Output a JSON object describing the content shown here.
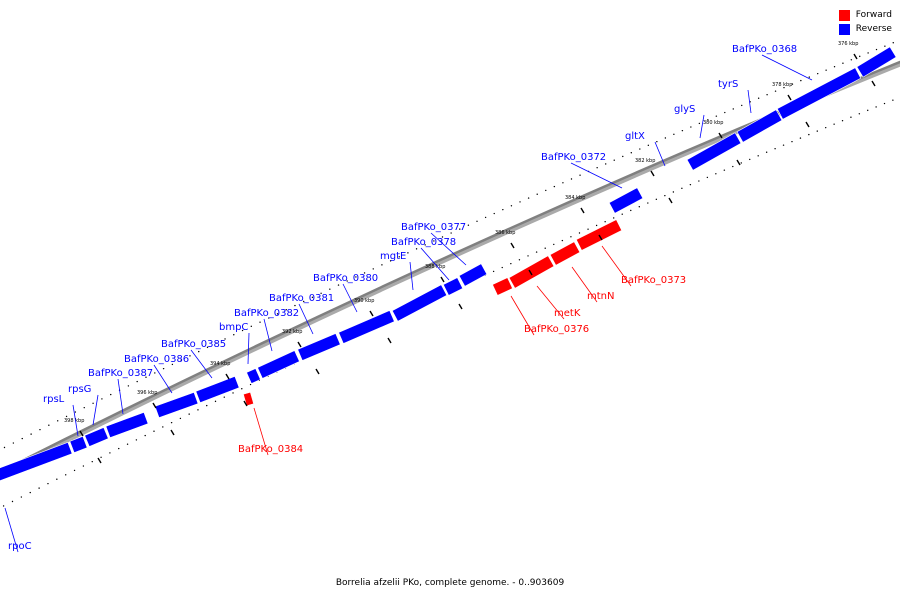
{
  "title": "Borrelia afzelii PKo, complete genome. - 0..903609",
  "legend": [
    {
      "label": "Forward",
      "color": "#ff0000"
    },
    {
      "label": "Reverse",
      "color": "#0000ff"
    }
  ],
  "colors": {
    "forward": "#ff0000",
    "reverse": "#0000ff",
    "backbone": "#808080"
  },
  "ticks": [
    "376 kbp",
    "378 kbp",
    "380 kbp",
    "382 kbp",
    "384 kbp",
    "386 kbp",
    "388 kbp",
    "390 kbp",
    "392 kbp",
    "394 kbp",
    "396 kbp",
    "398 kbp"
  ],
  "genes": [
    {
      "label": "BafPKo_0368",
      "strand": "reverse"
    },
    {
      "label": "tyrS",
      "strand": "reverse"
    },
    {
      "label": "glyS",
      "strand": "reverse"
    },
    {
      "label": "gltX",
      "strand": "reverse"
    },
    {
      "label": "BafPKo_0372",
      "strand": "reverse"
    },
    {
      "label": "BafPKo_0373",
      "strand": "forward"
    },
    {
      "label": "mtnN",
      "strand": "forward"
    },
    {
      "label": "metK",
      "strand": "forward"
    },
    {
      "label": "BafPKo_0376",
      "strand": "forward"
    },
    {
      "label": "BafPKo_0377",
      "strand": "reverse"
    },
    {
      "label": "BafPKo_0378",
      "strand": "reverse"
    },
    {
      "label": "mgtE",
      "strand": "reverse"
    },
    {
      "label": "BafPKo_0380",
      "strand": "reverse"
    },
    {
      "label": "BafPKo_0381",
      "strand": "reverse"
    },
    {
      "label": "BafPKo_0382",
      "strand": "reverse"
    },
    {
      "label": "BafPKo_0384",
      "strand": "forward"
    },
    {
      "label": "bmpC",
      "strand": "reverse"
    },
    {
      "label": "BafPKo_0385",
      "strand": "reverse"
    },
    {
      "label": "BafPKo_0386",
      "strand": "reverse"
    },
    {
      "label": "BafPKo_0387",
      "strand": "reverse"
    },
    {
      "label": "rpsG",
      "strand": "reverse"
    },
    {
      "label": "rpsL",
      "strand": "reverse"
    },
    {
      "label": "rpoC",
      "strand": "reverse"
    }
  ]
}
